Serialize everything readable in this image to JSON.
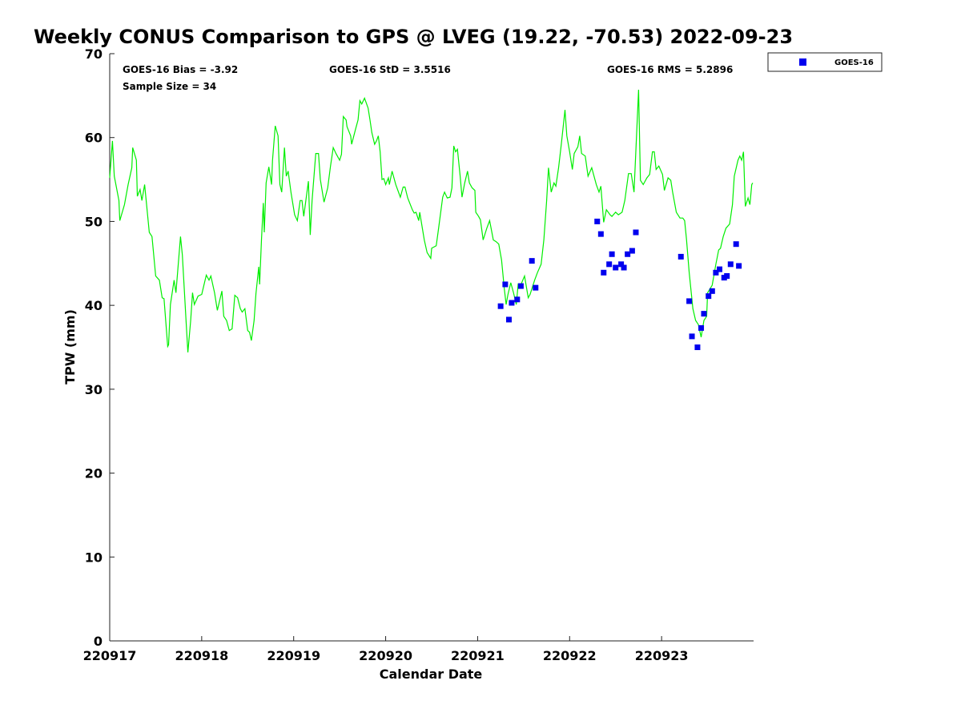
{
  "chart_data": {
    "type": "line",
    "title": "Weekly CONUS Comparison to GPS @ LVEG (19.22, -70.53) 2022-09-23",
    "xlabel": "Calendar Date",
    "ylabel": "TPW (mm)",
    "x_units": "days since 220917 00Z",
    "xlim": [
      0,
      7
    ],
    "ylim": [
      0,
      70
    ],
    "xticks": [
      0,
      1,
      2,
      3,
      4,
      5,
      6
    ],
    "xtick_labels": [
      "220917",
      "220918",
      "220919",
      "220920",
      "220921",
      "220922",
      "220923"
    ],
    "yticks": [
      0,
      10,
      20,
      30,
      40,
      50,
      60,
      70
    ],
    "ytick_labels": [
      "0",
      "10",
      "20",
      "30",
      "40",
      "50",
      "60",
      "70"
    ],
    "grid": false,
    "legend": {
      "placement": "outside-top-right",
      "entries": [
        "GOES-16"
      ]
    },
    "annotations": {
      "bias": "GOES-16 Bias = -3.92",
      "sample": "Sample Size = 34",
      "std": "GOES-16 StD = 3.5516",
      "rms": "GOES-16 RMS = 5.2896"
    },
    "series": [
      {
        "name": "GPS",
        "kind": "line",
        "color": "#00ee00",
        "x": [
          0,
          0.03,
          0.05,
          0.1,
          0.11,
          0.16,
          0.2,
          0.24,
          0.25,
          0.29,
          0.3,
          0.33,
          0.35,
          0.38,
          0.43,
          0.46,
          0.5,
          0.54,
          0.57,
          0.59,
          0.63,
          0.64,
          0.66,
          0.7,
          0.72,
          0.77,
          0.79,
          0.83,
          0.85,
          0.88,
          0.9,
          0.92,
          0.96,
          1.0,
          1.05,
          1.08,
          1.1,
          1.14,
          1.17,
          1.22,
          1.24,
          1.27,
          1.3,
          1.33,
          1.36,
          1.39,
          1.42,
          1.44,
          1.47,
          1.5,
          1.52,
          1.54,
          1.57,
          1.59,
          1.62,
          1.63,
          1.65,
          1.67,
          1.68,
          1.7,
          1.73,
          1.76,
          1.77,
          1.8,
          1.83,
          1.85,
          1.87,
          1.9,
          1.92,
          1.94,
          1.97,
          2.01,
          2.04,
          2.07,
          2.09,
          2.11,
          2.16,
          2.18,
          2.2,
          2.24,
          2.27,
          2.29,
          2.33,
          2.37,
          2.4,
          2.43,
          2.46,
          2.5,
          2.52,
          2.54,
          2.57,
          2.58,
          2.62,
          2.63,
          2.67,
          2.7,
          2.72,
          2.74,
          2.77,
          2.81,
          2.83,
          2.85,
          2.88,
          2.9,
          2.92,
          2.94,
          2.96,
          2.98,
          3.0,
          3.03,
          3.04,
          3.07,
          3.09,
          3.11,
          3.16,
          3.19,
          3.21,
          3.24,
          3.29,
          3.31,
          3.33,
          3.36,
          3.37,
          3.42,
          3.45,
          3.49,
          3.5,
          3.55,
          3.57,
          3.62,
          3.64,
          3.67,
          3.7,
          3.72,
          3.74,
          3.76,
          3.78,
          3.81,
          3.83,
          3.86,
          3.89,
          3.91,
          3.94,
          3.97,
          3.98,
          4.01,
          4.03,
          4.06,
          4.1,
          4.13,
          4.17,
          4.2,
          4.23,
          4.26,
          4.29,
          4.31,
          4.33,
          4.36,
          4.39,
          4.42,
          4.44,
          4.46,
          4.51,
          4.55,
          4.57,
          4.62,
          4.65,
          4.69,
          4.72,
          4.75,
          4.77,
          4.8,
          4.83,
          4.85,
          4.88,
          4.91,
          4.95,
          4.97,
          5.0,
          5.03,
          5.05,
          5.09,
          5.11,
          5.13,
          5.17,
          5.2,
          5.24,
          5.29,
          5.32,
          5.34,
          5.37,
          5.4,
          5.44,
          5.46,
          5.5,
          5.53,
          5.57,
          5.6,
          5.64,
          5.67,
          5.7,
          5.75,
          5.77,
          5.8,
          5.84,
          5.87,
          5.9,
          5.92,
          5.94,
          5.97,
          6.01,
          6.03,
          6.07,
          6.1,
          6.12,
          6.16,
          6.2,
          6.23,
          6.25,
          6.27,
          6.3,
          6.34,
          6.37,
          6.4,
          6.43,
          6.46,
          6.49,
          6.5,
          6.55,
          6.59,
          6.62,
          6.64,
          6.67,
          6.7,
          6.74,
          6.77,
          6.79,
          6.83,
          6.85,
          6.87,
          6.89,
          6.91,
          6.94,
          6.96,
          6.98,
          6.99
        ],
        "y": [
          55.2,
          59.6,
          55.4,
          52.5,
          50.1,
          52,
          54.4,
          56.4,
          58.8,
          57.3,
          53,
          53.8,
          52.5,
          54.4,
          48.7,
          48.2,
          43.5,
          43,
          40.9,
          40.8,
          35.1,
          35.3,
          40.1,
          43,
          41.5,
          48.2,
          46,
          38.2,
          34.4,
          38.2,
          41.5,
          40.1,
          41.1,
          41.3,
          43.6,
          43,
          43.5,
          41.5,
          39.4,
          41.7,
          38.7,
          38.2,
          37,
          37.2,
          41.2,
          40.9,
          39.6,
          39.2,
          39.6,
          37,
          36.8,
          35.8,
          38.2,
          41.4,
          44.6,
          42.5,
          47.8,
          52.2,
          48.7,
          54.6,
          56.5,
          54.4,
          57.3,
          61.4,
          60.2,
          54.4,
          53.5,
          58.8,
          55.4,
          56,
          53.5,
          50.8,
          50.1,
          52.5,
          52.5,
          50.6,
          54.8,
          48.4,
          52.5,
          58.1,
          58.1,
          55,
          52.3,
          54,
          56.6,
          58.8,
          58.1,
          57.3,
          58,
          62.5,
          62.1,
          61.3,
          60.2,
          59.2,
          60.9,
          62.1,
          64.4,
          64,
          64.7,
          63.5,
          62.1,
          60.6,
          59.2,
          59.6,
          60.2,
          58.3,
          55,
          55.1,
          54.4,
          55.2,
          54.4,
          56,
          55.2,
          54.4,
          52.9,
          54.1,
          54.1,
          52.8,
          51.4,
          51,
          51.1,
          50.1,
          51.1,
          47.8,
          46.3,
          45.6,
          46.8,
          47.1,
          48.7,
          52.9,
          53.5,
          52.8,
          52.9,
          54,
          59,
          58.3,
          58.6,
          55.4,
          52.9,
          54.6,
          56,
          54.6,
          54,
          53.7,
          51.1,
          50.6,
          50.2,
          47.8,
          49.2,
          50.1,
          47.8,
          47.6,
          47.3,
          45.4,
          42,
          40.1,
          41.3,
          42.7,
          41.5,
          40.1,
          42.5,
          42.2,
          43.5,
          40.9,
          41.3,
          43,
          43.9,
          44.9,
          47.8,
          52.5,
          56.4,
          53.5,
          54.6,
          54.2,
          56.4,
          59.2,
          63.3,
          60.2,
          58.3,
          56.2,
          58.1,
          58.9,
          60.2,
          58.1,
          57.8,
          55.4,
          56.4,
          54.4,
          53.5,
          54.2,
          49.9,
          51.4,
          50.8,
          50.6,
          51.1,
          50.8,
          51.1,
          52.5,
          55.7,
          55.7,
          53.5,
          65.7,
          54.9,
          54.4,
          55.2,
          55.6,
          58.3,
          58.3,
          56.2,
          56.6,
          55.6,
          53.7,
          55.2,
          54.9,
          53.5,
          51.1,
          50.4,
          50.4,
          50.1,
          47.9,
          43.9,
          39.6,
          38.2,
          37.7,
          36.2,
          38.2,
          38.7,
          41.5,
          42.4,
          44.9,
          46.6,
          46.8,
          48.2,
          49.2,
          49.7,
          52,
          55.4,
          57.3,
          57.8,
          57.3,
          58.3,
          51.8,
          52.8,
          52,
          54.4,
          54.6
        ]
      },
      {
        "name": "GOES-16",
        "kind": "scatter",
        "color": "#0000ee",
        "x": [
          4.25,
          4.3,
          4.34,
          4.37,
          4.43,
          4.47,
          4.59,
          4.63,
          5.3,
          5.34,
          5.37,
          5.43,
          5.46,
          5.5,
          5.56,
          5.59,
          5.63,
          5.68,
          5.72,
          6.21,
          6.3,
          6.33,
          6.39,
          6.43,
          6.46,
          6.51,
          6.55,
          6.59,
          6.63,
          6.68,
          6.71,
          6.75,
          6.81,
          6.84
        ],
        "y": [
          39.9,
          42.5,
          38.3,
          40.3,
          40.7,
          42.3,
          45.3,
          42.1,
          50,
          48.5,
          43.9,
          44.9,
          46.1,
          44.5,
          44.9,
          44.5,
          46.1,
          46.5,
          48.7,
          45.8,
          40.5,
          36.3,
          35,
          37.3,
          39,
          41.1,
          41.7,
          43.9,
          44.3,
          43.3,
          43.5,
          44.9,
          47.3,
          44.7
        ]
      }
    ]
  }
}
